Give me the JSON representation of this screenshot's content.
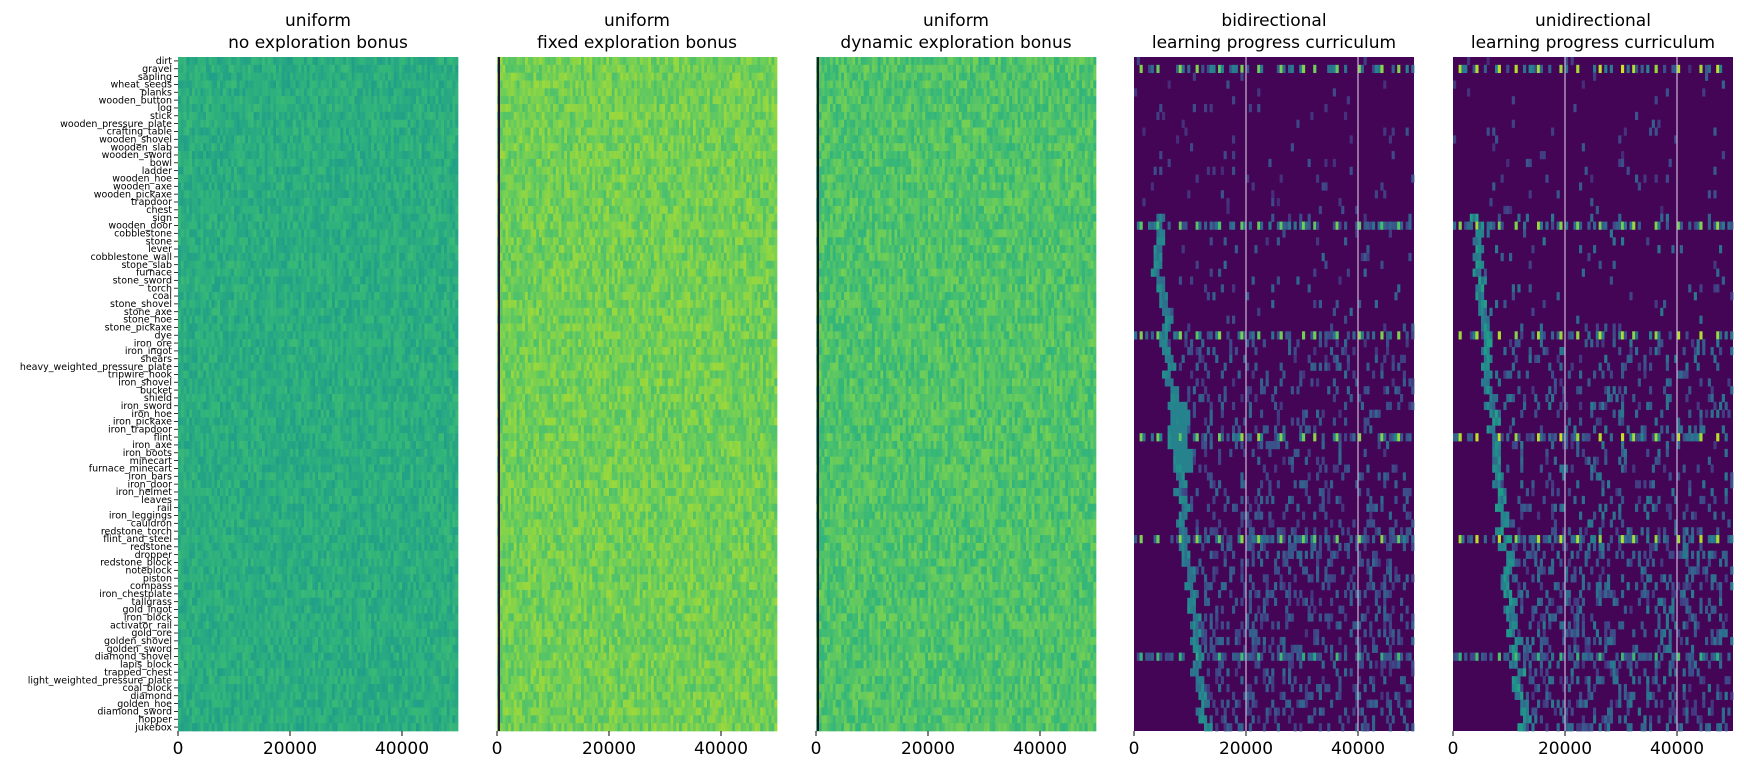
{
  "colors": {
    "colormap": "viridis",
    "background": "#ffffff",
    "vline": "#c9b6d2",
    "leftline": "#2b0f3a"
  },
  "chart_data": [
    {
      "type": "heatmap",
      "title_line1": "uniform",
      "title_line2": "no exploration bonus",
      "x_ticks": [
        "0",
        "20000",
        "40000"
      ],
      "x_range": [
        0,
        50000
      ],
      "show_ylabels": true,
      "pattern": "uniform",
      "base_level": 0.62,
      "noise": 0.06,
      "vlines": []
    },
    {
      "type": "heatmap",
      "title_line1": "uniform",
      "title_line2": "fixed exploration bonus",
      "x_ticks": [
        "0",
        "20000",
        "40000"
      ],
      "x_range": [
        0,
        50000
      ],
      "show_ylabels": false,
      "pattern": "uniform",
      "base_level": 0.78,
      "noise": 0.07,
      "left_dark_line": true,
      "vlines": []
    },
    {
      "type": "heatmap",
      "title_line1": "uniform",
      "title_line2": "dynamic exploration bonus",
      "x_ticks": [
        "0",
        "20000",
        "40000"
      ],
      "x_range": [
        0,
        50000
      ],
      "show_ylabels": false,
      "pattern": "uniform",
      "base_level": 0.72,
      "noise": 0.07,
      "left_dark_line": true,
      "vlines": []
    },
    {
      "type": "heatmap",
      "title_line1": "bidirectional",
      "title_line2": "learning progress curriculum",
      "x_ticks": [
        "0",
        "20000",
        "40000"
      ],
      "x_range": [
        0,
        50000
      ],
      "show_ylabels": false,
      "pattern": "curriculum",
      "intensity": 0.55,
      "vlines": [
        20000,
        40000
      ]
    },
    {
      "type": "heatmap",
      "title_line1": "unidirectional",
      "title_line2": "learning progress curriculum",
      "x_ticks": [
        "0",
        "20000",
        "40000"
      ],
      "x_range": [
        0,
        50000
      ],
      "show_ylabels": false,
      "pattern": "curriculum",
      "intensity": 0.75,
      "vlines": [
        20000,
        40000
      ]
    }
  ],
  "y_labels": [
    "dirt",
    "gravel",
    "sapling",
    "wheat_seeds",
    "planks",
    "wooden_button",
    "log",
    "stick",
    "wooden_pressure_plate",
    "crafting_table",
    "wooden_shovel",
    "wooden_slab",
    "wooden_sword",
    "bowl",
    "ladder",
    "wooden_hoe",
    "wooden_axe",
    "wooden_pickaxe",
    "trapdoor",
    "chest",
    "sign",
    "wooden_door",
    "cobblestone",
    "stone",
    "lever",
    "cobblestone_wall",
    "stone_slab",
    "furnace",
    "stone_sword",
    "torch",
    "coal",
    "stone_shovel",
    "stone_axe",
    "stone_hoe",
    "stone_pickaxe",
    "dye",
    "iron_ore",
    "iron_ingot",
    "shears",
    "heavy_weighted_pressure_plate",
    "tripwire_hook",
    "iron_shovel",
    "bucket",
    "shield",
    "iron_sword",
    "iron_hoe",
    "iron_pickaxe",
    "iron_trapdoor",
    "flint",
    "iron_axe",
    "iron_boots",
    "minecart",
    "furnace_minecart",
    "iron_bars",
    "iron_door",
    "iron_helmet",
    "leaves",
    "rail",
    "iron_leggings",
    "cauldron",
    "redstone_torch",
    "flint_and_steel",
    "redstone",
    "dropper",
    "redstone_block",
    "noteblock",
    "piston",
    "compass",
    "iron_chestplate",
    "tallgrass",
    "gold_ingot",
    "iron_block",
    "activator_rail",
    "gold_ore",
    "golden_shovel",
    "golden_sword",
    "diamond_shovel",
    "lapis_block",
    "trapped_chest",
    "light_weighted_pressure_plate",
    "coal_block",
    "diamond",
    "golden_hoe",
    "diamond_sword",
    "hopper",
    "jukebox"
  ]
}
